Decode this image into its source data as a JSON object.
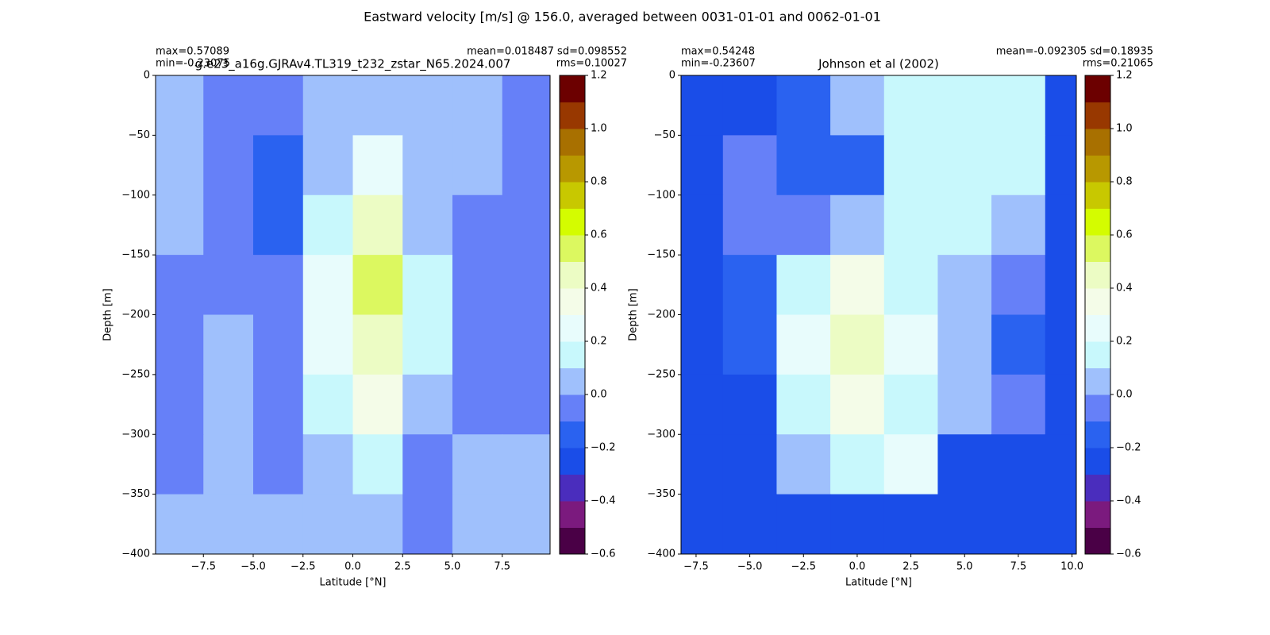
{
  "title": "Eastward velocity [m/s] @ 156.0, averaged between 0031-01-01 and 0062-01-01",
  "chart_data": [
    {
      "type": "heatmap",
      "title": "g.e23_a16g.GJRAv4.TL319_t232_zstar_N65.2024.007",
      "stats_left": [
        "max=0.57089",
        "min=-0.23075"
      ],
      "stats_right": [
        "mean=0.018487 sd=0.098552",
        "rms=0.10027"
      ],
      "xlabel": "Latitude [°N]",
      "ylabel": "Depth [m]",
      "x": [
        -8.75,
        -6.25,
        -3.75,
        -1.25,
        1.25,
        3.75,
        6.25,
        8.75
      ],
      "y": [
        -25,
        -75,
        -125,
        -175,
        -225,
        -275,
        -325,
        -375
      ],
      "values": [
        [
          0.05,
          -0.05,
          -0.05,
          0.05,
          0.05,
          0.05,
          0.05,
          -0.05
        ],
        [
          0.05,
          -0.05,
          -0.15,
          0.05,
          0.25,
          0.05,
          0.05,
          -0.05
        ],
        [
          0.05,
          -0.05,
          -0.15,
          0.15,
          0.45,
          0.05,
          -0.05,
          -0.05
        ],
        [
          -0.05,
          -0.05,
          -0.05,
          0.25,
          0.55,
          0.15,
          -0.05,
          -0.05
        ],
        [
          -0.05,
          0.05,
          -0.05,
          0.25,
          0.45,
          0.15,
          -0.05,
          -0.05
        ],
        [
          -0.05,
          0.05,
          -0.05,
          0.15,
          0.35,
          0.05,
          -0.05,
          -0.05
        ],
        [
          -0.05,
          0.05,
          -0.05,
          0.05,
          0.15,
          -0.05,
          0.05,
          0.05
        ],
        [
          0.05,
          0.05,
          0.05,
          0.05,
          0.05,
          -0.05,
          0.05,
          0.05
        ]
      ],
      "xlim": [
        -9.9,
        9.9
      ],
      "ylim": [
        -400,
        0
      ],
      "xticks": [
        {
          "value": -7.5,
          "label": "−7.5"
        },
        {
          "value": -5,
          "label": "−5.0"
        },
        {
          "value": -2.5,
          "label": "−2.5"
        },
        {
          "value": 0,
          "label": "0.0"
        },
        2.5,
        {
          "value": 5,
          "label": "5.0"
        },
        7.5
      ],
      "yticks": [
        {
          "value": 0,
          "label": "0"
        },
        {
          "value": -50,
          "label": "−50"
        },
        {
          "value": -100,
          "label": "−100"
        },
        {
          "value": -150,
          "label": "−150"
        },
        {
          "value": -200,
          "label": "−200"
        },
        {
          "value": -250,
          "label": "−250"
        },
        {
          "value": -300,
          "label": "−300"
        },
        {
          "value": -350,
          "label": "−350"
        },
        {
          "value": -400,
          "label": "−400"
        }
      ],
      "levels": [
        -0.6,
        -0.5,
        -0.4,
        -0.3,
        -0.2,
        -0.1,
        0,
        0.1,
        0.2,
        0.3,
        0.4,
        0.5,
        0.6,
        0.7,
        0.8,
        0.9,
        1.0,
        1.1,
        1.2
      ],
      "colors": [
        "#4a0046",
        "#7b1a7e",
        "#4a2dbd",
        "#1a4de8",
        "#2a62f0",
        "#6680f8",
        "#9fc0fc",
        "#c8f8fc",
        "#e8fcfc",
        "#f4fce8",
        "#ecfcc4",
        "#dcf860",
        "#d4fc00",
        "#c8c800",
        "#b89800",
        "#a87000",
        "#983800",
        "#6c0000"
      ],
      "cbar_ticks": [
        {
          "value": -0.6,
          "label": "−0.6"
        },
        {
          "value": -0.4,
          "label": "−0.4"
        },
        {
          "value": -0.2,
          "label": "−0.2"
        },
        {
          "value": 0,
          "label": "0.0"
        },
        0.2,
        0.4,
        0.6,
        0.8,
        {
          "value": 1,
          "label": "1.0"
        },
        1.2
      ]
    },
    {
      "type": "heatmap",
      "title": "Johnson et al (2002)",
      "stats_left": [
        "max=0.54248",
        "min=-0.23607"
      ],
      "stats_right": [
        "mean=-0.092305 sd=0.18935",
        "rms=0.21065"
      ],
      "xlabel": "Latitude [°N]",
      "ylabel": "Depth [m]",
      "x": [
        -7.5,
        -5,
        -2.5,
        0,
        2.5,
        5,
        7.5,
        10
      ],
      "y": [
        -25,
        -75,
        -125,
        -175,
        -225,
        -275,
        -325,
        -375
      ],
      "values": [
        [
          -0.25,
          -0.25,
          -0.15,
          0.05,
          0.15,
          0.15,
          0.15,
          -0.25
        ],
        [
          -0.25,
          -0.05,
          -0.15,
          -0.15,
          0.15,
          0.15,
          0.15,
          -0.25
        ],
        [
          -0.25,
          -0.05,
          -0.05,
          0.05,
          0.15,
          0.15,
          0.05,
          -0.25
        ],
        [
          -0.25,
          -0.15,
          0.15,
          0.35,
          0.15,
          0.05,
          -0.05,
          -0.25
        ],
        [
          -0.25,
          -0.15,
          0.25,
          0.45,
          0.25,
          0.05,
          -0.15,
          -0.25
        ],
        [
          -0.25,
          -0.25,
          0.15,
          0.35,
          0.15,
          0.05,
          -0.05,
          -0.25
        ],
        [
          -0.25,
          -0.25,
          0.05,
          0.15,
          0.25,
          -0.25,
          -0.25,
          -0.25
        ],
        [
          -0.25,
          -0.25,
          -0.25,
          -0.25,
          -0.25,
          -0.25,
          -0.25,
          -0.25
        ]
      ],
      "xlim": [
        -8.2,
        10.2
      ],
      "ylim": [
        -400,
        0
      ],
      "xticks": [
        {
          "value": -7.5,
          "label": "−7.5"
        },
        {
          "value": -5,
          "label": "−5.0"
        },
        {
          "value": -2.5,
          "label": "−2.5"
        },
        {
          "value": 0,
          "label": "0.0"
        },
        2.5,
        {
          "value": 5,
          "label": "5.0"
        },
        7.5,
        {
          "value": 10,
          "label": "10.0"
        }
      ],
      "yticks": [
        {
          "value": 0,
          "label": "0"
        },
        {
          "value": -50,
          "label": "−50"
        },
        {
          "value": -100,
          "label": "−100"
        },
        {
          "value": -150,
          "label": "−150"
        },
        {
          "value": -200,
          "label": "−200"
        },
        {
          "value": -250,
          "label": "−250"
        },
        {
          "value": -300,
          "label": "−300"
        },
        {
          "value": -350,
          "label": "−350"
        },
        {
          "value": -400,
          "label": "−400"
        }
      ],
      "levels": [
        -0.6,
        -0.5,
        -0.4,
        -0.3,
        -0.2,
        -0.1,
        0,
        0.1,
        0.2,
        0.3,
        0.4,
        0.5,
        0.6,
        0.7,
        0.8,
        0.9,
        1.0,
        1.1,
        1.2
      ],
      "colors": [
        "#4a0046",
        "#7b1a7e",
        "#4a2dbd",
        "#1a4de8",
        "#2a62f0",
        "#6680f8",
        "#9fc0fc",
        "#c8f8fc",
        "#e8fcfc",
        "#f4fce8",
        "#ecfcc4",
        "#dcf860",
        "#d4fc00",
        "#c8c800",
        "#b89800",
        "#a87000",
        "#983800",
        "#6c0000"
      ],
      "cbar_ticks": [
        {
          "value": -0.6,
          "label": "−0.6"
        },
        {
          "value": -0.4,
          "label": "−0.4"
        },
        {
          "value": -0.2,
          "label": "−0.2"
        },
        {
          "value": 0,
          "label": "0.0"
        },
        0.2,
        0.4,
        0.6,
        0.8,
        {
          "value": 1,
          "label": "1.0"
        },
        1.2
      ]
    }
  ]
}
